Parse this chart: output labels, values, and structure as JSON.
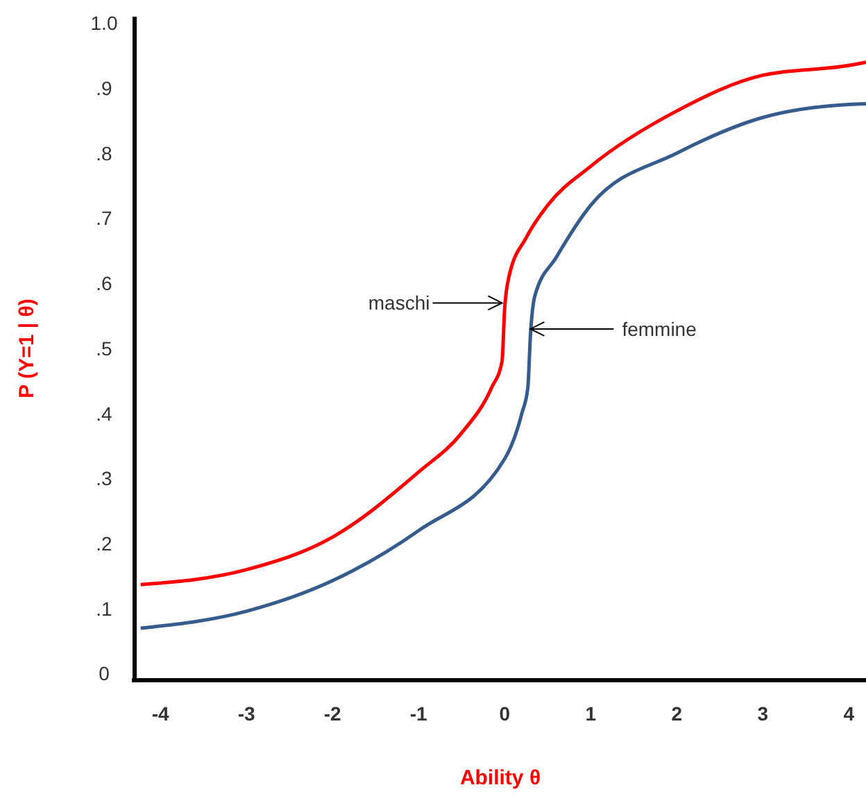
{
  "chart_data": {
    "type": "line",
    "xlabel": "Ability θ",
    "ylabel": "P (Y=1 | θ)",
    "xlim": [
      -4.3,
      4.2
    ],
    "xticks": [
      -4,
      -3,
      -2,
      -1,
      0,
      1,
      2,
      3,
      4
    ],
    "ylim": [
      -0.01,
      1.01
    ],
    "yticks": [
      0,
      {
        "value": 0.1,
        "label": ".1"
      },
      {
        "value": 0.2,
        "label": ".2"
      },
      {
        "value": 0.3,
        "label": ".3"
      },
      {
        "value": 0.4,
        "label": ".4"
      },
      {
        "value": 0.5,
        "label": ".5"
      },
      {
        "value": 0.6,
        "label": ".6"
      },
      {
        "value": 0.7,
        "label": ".7"
      },
      {
        "value": 0.8,
        "label": ".8"
      },
      {
        "value": 0.9,
        "label": ".9"
      },
      {
        "value": 1,
        "label": "1.0"
      }
    ],
    "grid": false,
    "marker": "none",
    "line_style": "solid",
    "series": [
      {
        "color": "#ff0000",
        "x": [
          -4.23,
          -3,
          -2,
          -1,
          -0.5,
          -0.15,
          -0.03,
          0,
          0.05,
          0.25,
          0.5,
          1,
          2,
          3,
          4,
          4.2
        ],
        "values": [
          0.137,
          0.16,
          0.21,
          0.31,
          0.37,
          0.44,
          0.48,
          0.56,
          0.61,
          0.67,
          0.72,
          0.78,
          0.865,
          0.92,
          0.935,
          0.94
        ]
      },
      {
        "color": "#355c8c",
        "x": [
          -4.23,
          -3,
          -2,
          -1,
          0,
          0.2,
          0.27,
          0.3,
          0.35,
          0.6,
          1,
          2,
          3,
          4,
          4.2
        ],
        "values": [
          0.07,
          0.096,
          0.143,
          0.22,
          0.33,
          0.4,
          0.44,
          0.52,
          0.58,
          0.64,
          0.72,
          0.8,
          0.855,
          0.875,
          0.876
        ]
      }
    ],
    "annotations": [
      {
        "text": "maschi",
        "x": -0.03,
        "y": 0.57
      },
      {
        "text": "femmine",
        "x": 0.3,
        "y": 0.53
      }
    ]
  }
}
